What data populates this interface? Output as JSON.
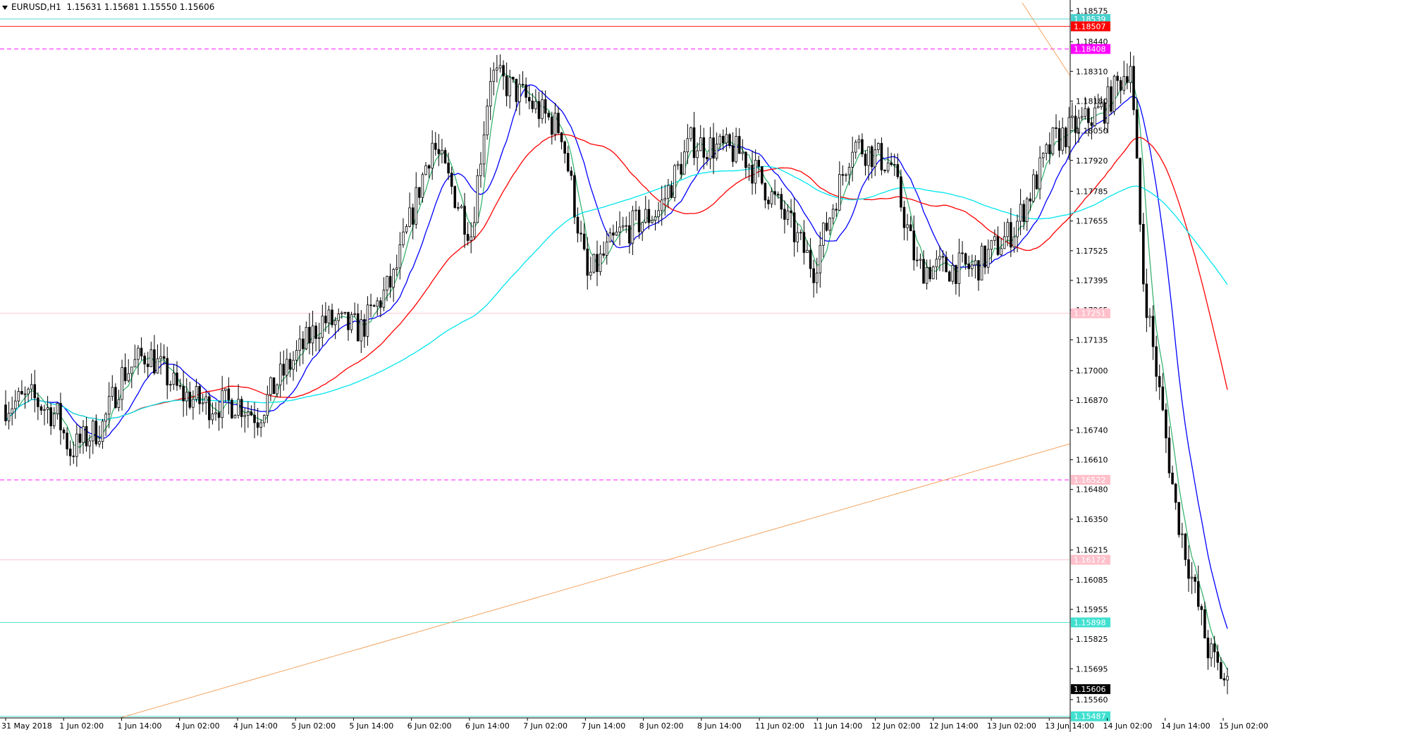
{
  "header": {
    "symbol": "EURUSD,H1",
    "ohlc": "1.15631 1.15681 1.15550 1.15606"
  },
  "colors": {
    "bull": "#ffffff",
    "bear": "#000000",
    "wick": "#000000",
    "ma_fast": "#3cb371",
    "ma_mid": "#0000ff",
    "ma_slow": "#ff0000",
    "ma_long": "#00e5ee",
    "trend": "#f4a460",
    "magenta": "#ff00ff"
  },
  "chart_data": {
    "type": "candlestick",
    "title": "EURUSD,H1",
    "timeframe": "H1",
    "ylim": [
      1.1548,
      1.1861
    ],
    "y_ticks": [
      "1.18575",
      "1.18440",
      "1.18310",
      "1.18180",
      "1.18050",
      "1.17920",
      "1.17785",
      "1.17655",
      "1.17525",
      "1.17395",
      "1.17265",
      "1.17135",
      "1.17000",
      "1.16870",
      "1.16740",
      "1.16610",
      "1.16480",
      "1.16350",
      "1.16215",
      "1.16085",
      "1.15955",
      "1.15825",
      "1.15695",
      "1.15560"
    ],
    "x_labels": [
      "31 May 2018",
      "1 Jun 02:00",
      "1 Jun 14:00",
      "4 Jun 02:00",
      "4 Jun 14:00",
      "5 Jun 02:00",
      "5 Jun 14:00",
      "6 Jun 02:00",
      "6 Jun 14:00",
      "7 Jun 02:00",
      "7 Jun 14:00",
      "8 Jun 02:00",
      "8 Jun 14:00",
      "11 Jun 02:00",
      "11 Jun 14:00",
      "12 Jun 02:00",
      "12 Jun 14:00",
      "13 Jun 02:00",
      "13 Jun 14:00",
      "14 Jun 02:00",
      "14 Jun 14:00",
      "15 Jun 02:00"
    ],
    "anchors": [
      [
        0,
        1.1685
      ],
      [
        8,
        1.1688
      ],
      [
        16,
        1.168
      ],
      [
        20,
        1.1665
      ],
      [
        30,
        1.1676
      ],
      [
        36,
        1.1698
      ],
      [
        44,
        1.1708
      ],
      [
        54,
        1.169
      ],
      [
        62,
        1.1685
      ],
      [
        72,
        1.1686
      ],
      [
        78,
        1.168
      ],
      [
        84,
        1.1695
      ],
      [
        98,
        1.1722
      ],
      [
        110,
        1.1718
      ],
      [
        120,
        1.174
      ],
      [
        132,
        1.18
      ],
      [
        144,
        1.176
      ],
      [
        150,
        1.183
      ],
      [
        160,
        1.182
      ],
      [
        172,
        1.1805
      ],
      [
        180,
        1.174
      ],
      [
        190,
        1.176
      ],
      [
        202,
        1.177
      ],
      [
        212,
        1.18
      ],
      [
        228,
        1.1795
      ],
      [
        240,
        1.177
      ],
      [
        250,
        1.1745
      ],
      [
        262,
        1.18
      ],
      [
        274,
        1.179
      ],
      [
        282,
        1.1745
      ],
      [
        300,
        1.1745
      ],
      [
        312,
        1.1762
      ],
      [
        324,
        1.18
      ],
      [
        340,
        1.1815
      ],
      [
        348,
        1.1835
      ],
      [
        352,
        1.174
      ],
      [
        362,
        1.164
      ],
      [
        372,
        1.1578
      ],
      [
        378,
        1.1562
      ]
    ],
    "price_tags": [
      {
        "label": "1.18539",
        "value": 1.18539,
        "bg": "#48d1cc",
        "fg": "#ffffff"
      },
      {
        "label": "1.18507",
        "value": 1.18507,
        "bg": "#ff0000",
        "fg": "#ffffff"
      },
      {
        "label": "1.18408",
        "value": 1.18408,
        "bg": "#ff00ff",
        "fg": "#ffffff"
      },
      {
        "label": "1.17251",
        "value": 1.17251,
        "bg": "#ffc0cb",
        "fg": "#ffffff"
      },
      {
        "label": "1.16522",
        "value": 1.16522,
        "bg": "#ffc0cb",
        "fg": "#ffffff"
      },
      {
        "label": "1.16172",
        "value": 1.16172,
        "bg": "#ffc0cb",
        "fg": "#ffffff"
      },
      {
        "label": "1.15898",
        "value": 1.15898,
        "bg": "#40e0d0",
        "fg": "#ffffff"
      },
      {
        "label": "1.15606",
        "value": 1.15606,
        "bg": "#000000",
        "fg": "#ffffff"
      },
      {
        "label": "1.15487",
        "value": 1.15487,
        "bg": "#40e0d0",
        "fg": "#ffffff"
      }
    ],
    "grid": false,
    "legend": "none"
  }
}
